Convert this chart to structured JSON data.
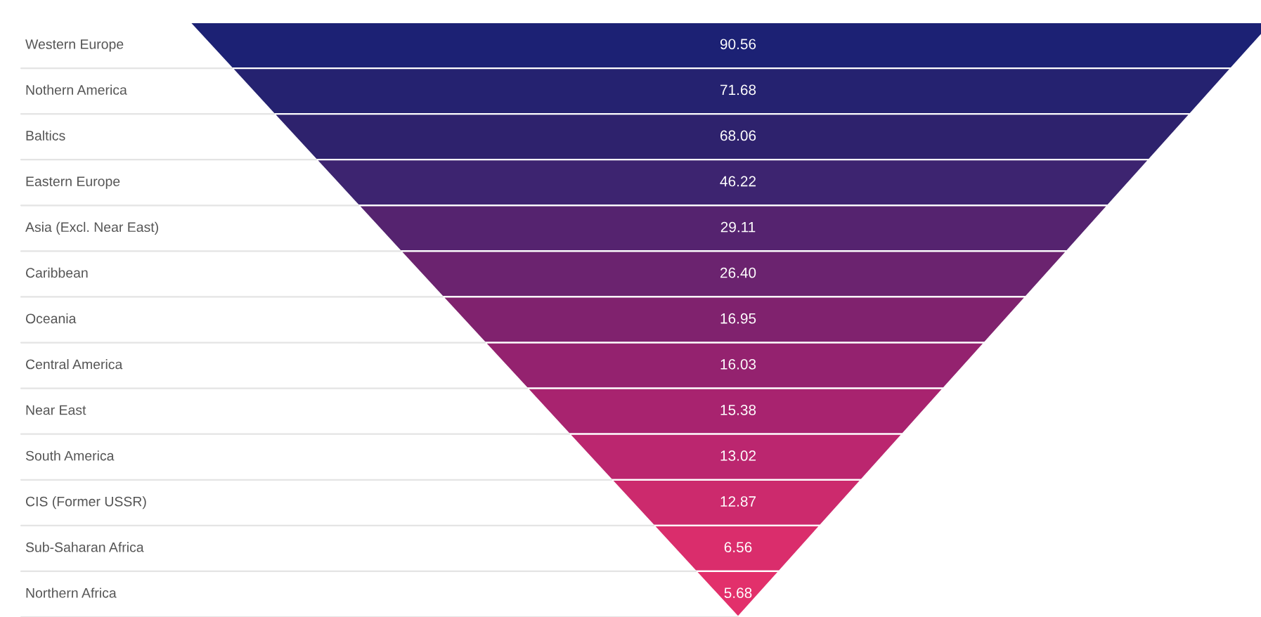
{
  "chart_data": {
    "type": "other",
    "categories": [
      "Western Europe",
      "Nothern America",
      "Baltics",
      "Eastern Europe",
      "Asia (Excl. Near East)",
      "Caribbean",
      "Oceania",
      "Central America",
      "Near East",
      "South America",
      "CIS (Former USSR)",
      "Sub-Saharan Africa",
      "Northern Africa"
    ],
    "values": [
      90.56,
      71.68,
      68.06,
      46.22,
      29.11,
      26.4,
      16.95,
      16.03,
      15.38,
      13.02,
      12.87,
      6.56,
      5.68
    ],
    "value_labels": [
      "90.56",
      "71.68",
      "68.06",
      "46.22",
      "29.11",
      "26.40",
      "16.95",
      "16.03",
      "15.38",
      "13.02",
      "12.87",
      "6.56",
      "5.68"
    ],
    "colors": [
      "#1c2174",
      "#252270",
      "#2e226d",
      "#3d2470",
      "#55236f",
      "#6b236f",
      "#80226e",
      "#94226f",
      "#a8236f",
      "#bb266f",
      "#cc2a6d",
      "#da2d6c",
      "#e2306b"
    ]
  }
}
